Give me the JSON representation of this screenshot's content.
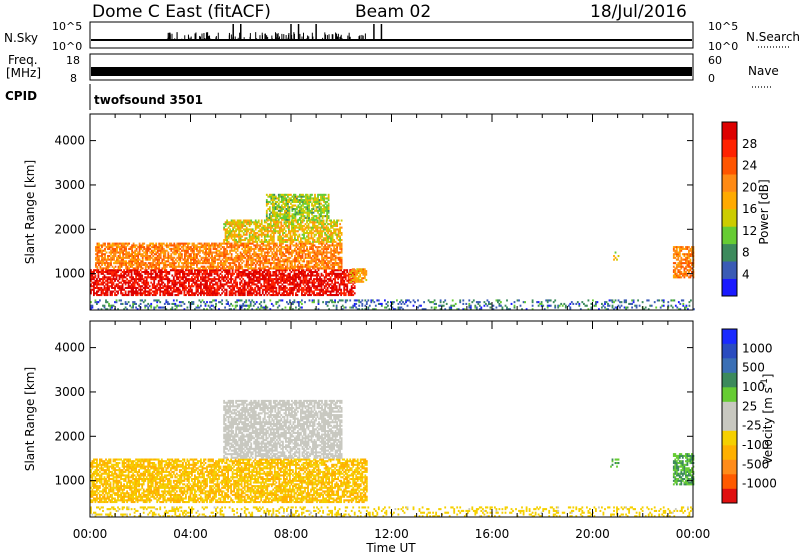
{
  "header": {
    "title": "Dome C East (fitACF)",
    "beam": "Beam 02",
    "date": "18/Jul/2016"
  },
  "status_panels": {
    "nsky": {
      "label": "N.Sky",
      "ticks": [
        "10^5",
        "10^0"
      ]
    },
    "nsearch": {
      "label": "N.Search",
      "ticks": [
        "10^5",
        "10^0"
      ],
      "legend_line": "dotted"
    },
    "freq": {
      "label_line1": "Freq.",
      "label_line2": "[MHz]",
      "ticks": [
        "18",
        "8"
      ]
    },
    "nave": {
      "label": "Nave",
      "ticks": [
        "60",
        "0"
      ],
      "legend_line": "dotted"
    },
    "cpid": {
      "label": "CPID",
      "value": "twofsound 3501"
    }
  },
  "colors": {
    "power_scale": [
      "#1a1aff",
      "#3a5bb5",
      "#3c8a5c",
      "#66cc33",
      "#cccc00",
      "#ffaa00",
      "#ff8a14",
      "#ff5500",
      "#ff2200",
      "#dd0000"
    ],
    "velocity_scale": [
      "#e01010",
      "#ff5a00",
      "#ff8c1a",
      "#ffb000",
      "#f5d000",
      "#c8c8c0",
      "#c8c8c0",
      "#66cc33",
      "#3c8a5c",
      "#3a6fb5",
      "#2a4cc0",
      "#1a2aff"
    ]
  },
  "chart_data": [
    {
      "type": "heatmap",
      "panel": "power",
      "ylabel": "Slant Range [km]",
      "xlabel": "Time UT",
      "x_ticks": [
        "00:00",
        "04:00",
        "08:00",
        "12:00",
        "16:00",
        "20:00",
        "00:00"
      ],
      "x_range_hours": [
        0,
        24
      ],
      "y_ticks": [
        "1000",
        "2000",
        "3000",
        "4000"
      ],
      "ylim": [
        180,
        4600
      ],
      "colorbar": {
        "label": "Power [dB]",
        "ticks": [
          "4",
          "8",
          "12",
          "16",
          "20",
          "24",
          "28"
        ],
        "range": [
          0,
          30
        ]
      },
      "regions": [
        {
          "t0": 0.0,
          "t1": 10.5,
          "r0": 500,
          "r1": 1100,
          "value": 28
        },
        {
          "t0": 0.2,
          "t1": 10.0,
          "r0": 1100,
          "r1": 1700,
          "value": 20
        },
        {
          "t0": 5.3,
          "t1": 10.0,
          "r0": 1700,
          "r1": 2200,
          "value": 15
        },
        {
          "t0": 7.0,
          "t1": 9.5,
          "r0": 2200,
          "r1": 2800,
          "value": 12
        },
        {
          "t0": 10.3,
          "t1": 11.0,
          "r0": 800,
          "r1": 1100,
          "value": 18
        },
        {
          "t0": 20.7,
          "t1": 21.0,
          "r0": 1300,
          "r1": 1500,
          "value": 14
        },
        {
          "t0": 23.2,
          "t1": 24.0,
          "r0": 900,
          "r1": 1600,
          "value": 20
        },
        {
          "t0": 0.0,
          "t1": 24.0,
          "r0": 180,
          "r1": 400,
          "value": 6
        }
      ]
    },
    {
      "type": "heatmap",
      "panel": "velocity",
      "ylabel": "Slant Range [km]",
      "xlabel": "Time UT",
      "x_ticks": [
        "00:00",
        "04:00",
        "08:00",
        "12:00",
        "16:00",
        "20:00",
        "00:00"
      ],
      "x_range_hours": [
        0,
        24
      ],
      "y_ticks": [
        "1000",
        "2000",
        "3000",
        "4000"
      ],
      "ylim": [
        180,
        4600
      ],
      "colorbar": {
        "label": "Velocity [m s^-1]",
        "ticks": [
          "-1000",
          "-500",
          "-100",
          "-25",
          "25",
          "100",
          "500",
          "1000"
        ]
      },
      "regions": [
        {
          "t0": 0.0,
          "t1": 11.0,
          "r0": 500,
          "r1": 1500,
          "value": -100
        },
        {
          "t0": 5.3,
          "t1": 10.0,
          "r0": 1500,
          "r1": 2800,
          "value": 0
        },
        {
          "t0": 20.7,
          "t1": 21.0,
          "r0": 1300,
          "r1": 1500,
          "value": 100
        },
        {
          "t0": 23.2,
          "t1": 24.0,
          "r0": 900,
          "r1": 1600,
          "value": 100
        },
        {
          "t0": 0.0,
          "t1": 24.0,
          "r0": 180,
          "r1": 400,
          "value": -50
        }
      ]
    }
  ]
}
